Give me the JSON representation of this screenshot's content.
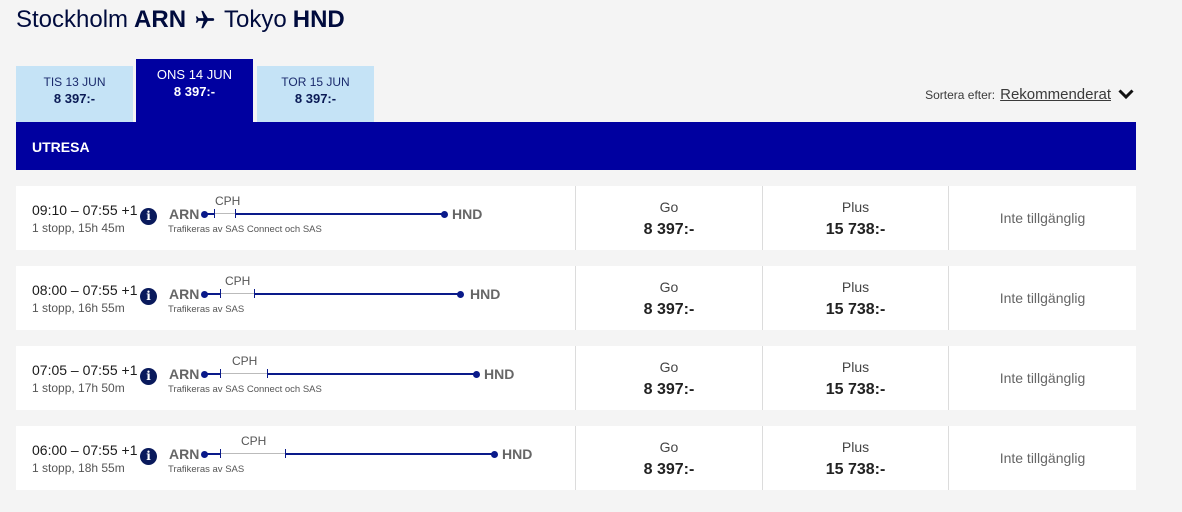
{
  "route": {
    "origin_city": "Stockholm",
    "origin_code": "ARN",
    "dest_city": "Tokyo",
    "dest_code": "HND",
    "plane_icon": "plane-icon"
  },
  "dates": [
    {
      "day": "TIS 13 JUN",
      "price": "8 397:-"
    },
    {
      "day": "ONS 14 JUN",
      "price": "8 397:-"
    },
    {
      "day": "TOR 15 JUN",
      "price": "8 397:-"
    }
  ],
  "sort": {
    "label": "Sortera efter:",
    "value": "Rekommenderat"
  },
  "section_title": "UTRESA",
  "flights": [
    {
      "times": "09:10 – 07:55 +1",
      "stops": "1 stopp, 15h 45m",
      "from": "ARN",
      "via": "CPH",
      "to": "HND",
      "operator": "Trafikeras av SAS Connect och SAS",
      "go_label": "Go",
      "go_price": "8 397:-",
      "plus_label": "Plus",
      "plus_price": "15 738:-",
      "third": "Inte tillgänglig"
    },
    {
      "times": "08:00 – 07:55 +1",
      "stops": "1 stopp, 16h 55m",
      "from": "ARN",
      "via": "CPH",
      "to": "HND",
      "operator": "Trafikeras av SAS",
      "go_label": "Go",
      "go_price": "8 397:-",
      "plus_label": "Plus",
      "plus_price": "15 738:-",
      "third": "Inte tillgänglig"
    },
    {
      "times": "07:05 – 07:55 +1",
      "stops": "1 stopp, 17h 50m",
      "from": "ARN",
      "via": "CPH",
      "to": "HND",
      "operator": "Trafikeras av SAS Connect och SAS",
      "go_label": "Go",
      "go_price": "8 397:-",
      "plus_label": "Plus",
      "plus_price": "15 738:-",
      "third": "Inte tillgänglig"
    },
    {
      "times": "06:00 – 07:55 +1",
      "stops": "1 stopp, 18h 55m",
      "from": "ARN",
      "via": "CPH",
      "to": "HND",
      "operator": "Trafikeras av SAS",
      "go_label": "Go",
      "go_price": "8 397:-",
      "plus_label": "Plus",
      "plus_price": "15 738:-",
      "third": "Inte tillgänglig"
    }
  ],
  "colors": {
    "brand": "#0000a0",
    "tab_inactive": "#c5e3f6",
    "navy": "#000b3d"
  }
}
